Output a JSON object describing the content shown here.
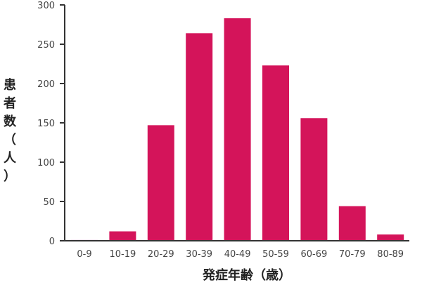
{
  "chart_data": {
    "type": "bar",
    "categories": [
      "0-9",
      "10-19",
      "20-29",
      "30-39",
      "40-49",
      "50-59",
      "60-69",
      "70-79",
      "80-89"
    ],
    "values": [
      1,
      12,
      147,
      264,
      283,
      223,
      156,
      44,
      8
    ],
    "xlabel": "発症年齢（歳）",
    "ylabel": "患者数（人）",
    "ylim": [
      0,
      300
    ],
    "yticks": [
      0,
      50,
      100,
      150,
      200,
      250,
      300
    ],
    "bar_color": "#d4145a",
    "axis_color": "#333333",
    "grid": false,
    "legend": "none"
  }
}
